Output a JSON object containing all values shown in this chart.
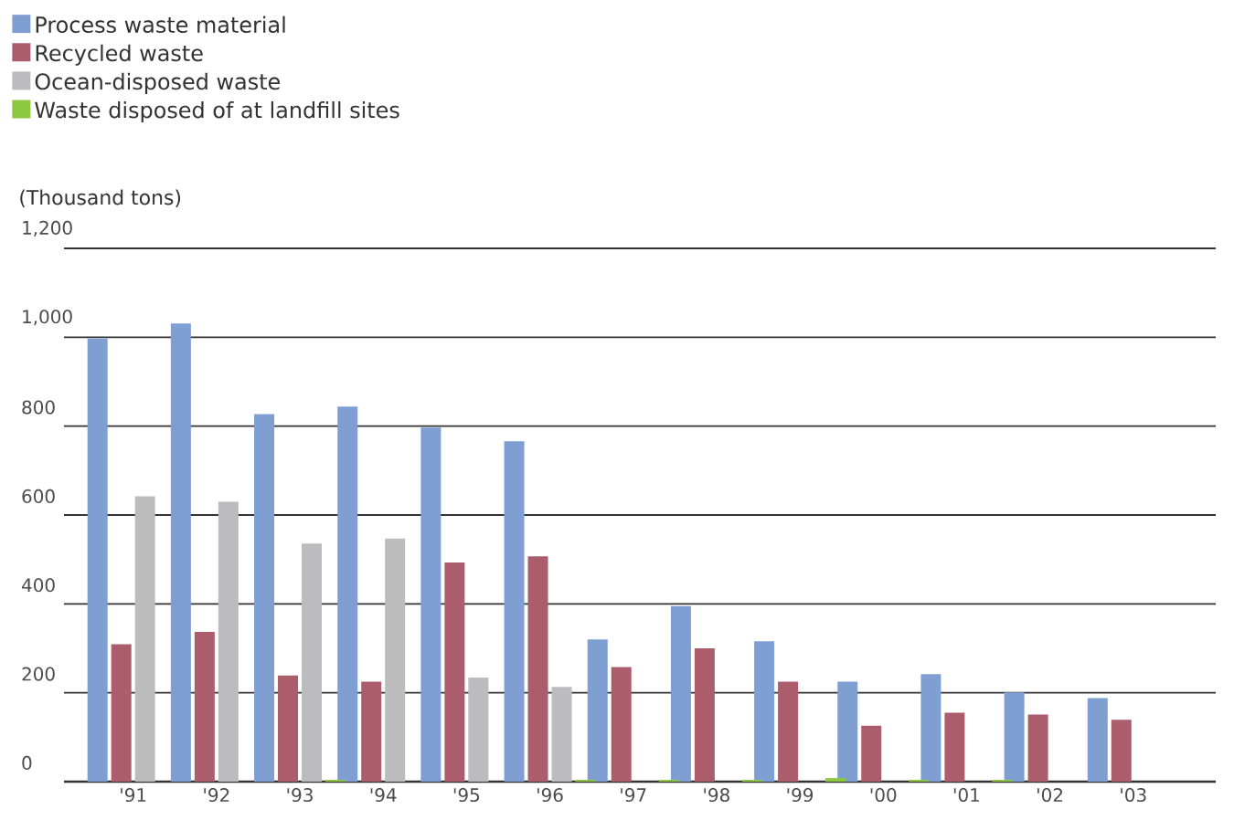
{
  "chart_data": {
    "type": "bar",
    "ylabel": "(Thousand tons)",
    "categories": [
      "'91",
      "'92",
      "'93",
      "'94",
      "'95",
      "'96",
      "'97",
      "'98",
      "'99",
      "'00",
      "'01",
      "'02",
      "'03"
    ],
    "series": [
      {
        "name": "Process waste material",
        "color": "#7f9fd3",
        "values": [
          997,
          1031,
          827,
          844,
          797,
          766,
          320,
          395,
          316,
          225,
          242,
          201,
          188
        ]
      },
      {
        "name": "Recycled waste",
        "color": "#ab5d6b",
        "values": [
          309,
          337,
          239,
          225,
          493,
          507,
          258,
          300,
          225,
          126,
          155,
          151,
          139
        ]
      },
      {
        "name": "Ocean-disposed waste",
        "color": "#bcbcbf",
        "values": [
          642,
          630,
          536,
          547,
          234,
          213,
          0,
          0,
          0,
          0,
          0,
          0,
          0
        ]
      },
      {
        "name": "Waste disposed of at landfill sites",
        "color": "#8dc63f",
        "values": [
          0,
          0,
          4,
          0,
          0,
          4,
          4,
          4,
          8,
          4,
          4,
          0,
          0
        ]
      }
    ],
    "ylim": [
      0,
      1200
    ],
    "yticks": [
      0,
      {
        "value": 200,
        "label": "200"
      },
      {
        "value": 400,
        "label": "400"
      },
      {
        "value": 600,
        "label": "600"
      },
      {
        "value": 800,
        "label": "800"
      },
      {
        "value": 1000,
        "label": "1,000"
      },
      {
        "value": 1200,
        "label": "1,200"
      }
    ],
    "grid": "y",
    "legend": "top left"
  }
}
